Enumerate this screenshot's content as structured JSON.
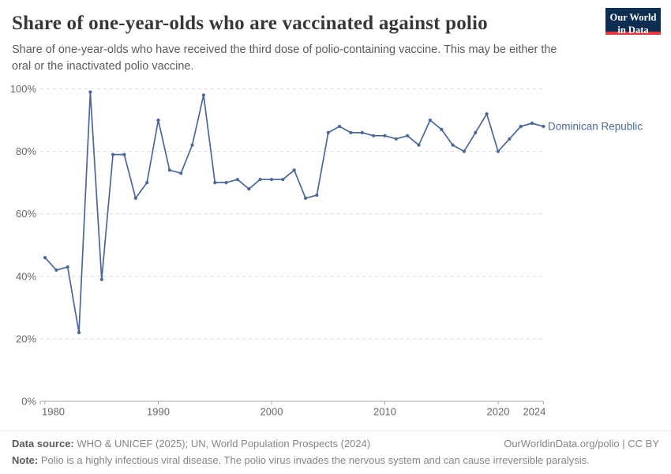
{
  "header": {
    "title": "Share of one-year-olds who are vaccinated against polio",
    "subtitle": "Share of one-year-olds who have received the third dose of polio-containing vaccine. This may be either the oral or the inactivated polio vaccine."
  },
  "logo": {
    "line1": "Our World",
    "line2": "in Data"
  },
  "chart_data": {
    "type": "line",
    "title": "Share of one-year-olds who are vaccinated against polio",
    "x": [
      1980,
      1981,
      1982,
      1983,
      1984,
      1985,
      1986,
      1987,
      1988,
      1989,
      1990,
      1991,
      1992,
      1993,
      1994,
      1995,
      1996,
      1997,
      1998,
      1999,
      2000,
      2001,
      2002,
      2003,
      2004,
      2005,
      2006,
      2007,
      2008,
      2009,
      2010,
      2011,
      2012,
      2013,
      2014,
      2015,
      2016,
      2017,
      2018,
      2019,
      2020,
      2021,
      2022,
      2023,
      2024
    ],
    "series": [
      {
        "name": "Dominican Republic",
        "values": [
          46,
          42,
          43,
          22,
          99,
          39,
          79,
          79,
          65,
          70,
          90,
          74,
          73,
          82,
          98,
          70,
          70,
          71,
          68,
          71,
          71,
          71,
          74,
          65,
          66,
          86,
          88,
          86,
          86,
          85,
          85,
          84,
          85,
          82,
          90,
          87,
          82,
          80,
          86,
          92,
          80,
          84,
          88,
          89,
          88
        ]
      }
    ],
    "xlabel": "",
    "ylabel": "",
    "xlim": [
      1980,
      2024
    ],
    "ylim": [
      0,
      100
    ],
    "xticks": [
      1980,
      1990,
      2000,
      2010,
      2020,
      2024
    ],
    "yticks": [
      0,
      20,
      40,
      60,
      80,
      100
    ],
    "ytick_suffix": "%",
    "grid": true,
    "legend": "line-end-label"
  },
  "colors": {
    "line": "#4a679c",
    "entity_label": "#4c6a9c",
    "grid": "#dcdcdc",
    "axis": "#a5a5a5",
    "tick_text": "#666666",
    "logo_bg": "#0d2d52",
    "logo_red": "#e0383e"
  },
  "footer": {
    "datasource_label": "Data source:",
    "datasource_text": " WHO & UNICEF (2025); UN, World Population Prospects (2024)",
    "credit": "OurWorldinData.org/polio | CC BY",
    "note_label": "Note:",
    "note_text": " Polio is a highly infectious viral disease. The polio virus invades the nervous system and can cause irreversible paralysis."
  }
}
